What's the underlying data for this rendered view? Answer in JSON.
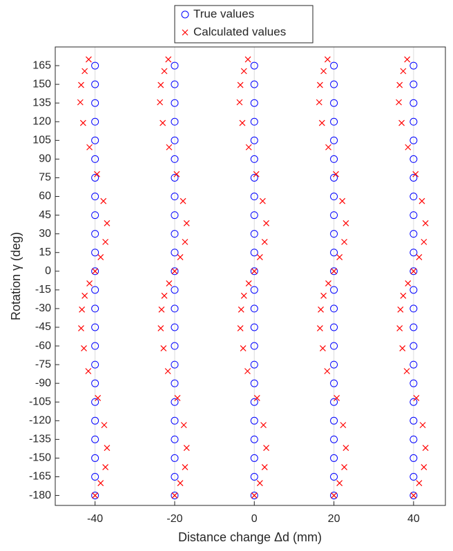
{
  "chart_data": {
    "type": "scatter",
    "xlabel": "Distance change Δd (mm)",
    "ylabel": "Rotation γ (deg)",
    "xlim": [
      -50,
      48
    ],
    "ylim": [
      -188,
      180
    ],
    "xticks": [
      -40,
      -20,
      0,
      20,
      40
    ],
    "yticks": [
      165,
      150,
      135,
      120,
      105,
      90,
      75,
      60,
      45,
      30,
      15,
      0,
      -15,
      -30,
      -45,
      -60,
      -75,
      -90,
      -105,
      -120,
      -135,
      -150,
      -165,
      -180
    ],
    "xgrid": true,
    "legend": "top",
    "series": [
      {
        "name": "True values",
        "color": "#0000ff",
        "marker": "circle",
        "x": [
          -40,
          -40,
          -40,
          -40,
          -40,
          -40,
          -40,
          -40,
          -40,
          -40,
          -40,
          -40,
          -40,
          -40,
          -40,
          -40,
          -40,
          -40,
          -40,
          -40,
          -40,
          -40,
          -40,
          -40,
          -20,
          -20,
          -20,
          -20,
          -20,
          -20,
          -20,
          -20,
          -20,
          -20,
          -20,
          -20,
          -20,
          -20,
          -20,
          -20,
          -20,
          -20,
          -20,
          -20,
          -20,
          -20,
          -20,
          -20,
          0,
          0,
          0,
          0,
          0,
          0,
          0,
          0,
          0,
          0,
          0,
          0,
          0,
          0,
          0,
          0,
          0,
          0,
          0,
          0,
          0,
          0,
          0,
          0,
          20,
          20,
          20,
          20,
          20,
          20,
          20,
          20,
          20,
          20,
          20,
          20,
          20,
          20,
          20,
          20,
          20,
          20,
          20,
          20,
          20,
          20,
          20,
          20,
          40,
          40,
          40,
          40,
          40,
          40,
          40,
          40,
          40,
          40,
          40,
          40,
          40,
          40,
          40,
          40,
          40,
          40,
          40,
          40,
          40,
          40,
          40,
          40
        ],
        "y": [
          165,
          150,
          135,
          120,
          105,
          90,
          75,
          60,
          45,
          30,
          15,
          0,
          -15,
          -30,
          -45,
          -60,
          -75,
          -90,
          -105,
          -120,
          -135,
          -150,
          -165,
          -180,
          165,
          150,
          135,
          120,
          105,
          90,
          75,
          60,
          45,
          30,
          15,
          0,
          -15,
          -30,
          -45,
          -60,
          -75,
          -90,
          -105,
          -120,
          -135,
          -150,
          -165,
          -180,
          165,
          150,
          135,
          120,
          105,
          90,
          75,
          60,
          45,
          30,
          15,
          0,
          -15,
          -30,
          -45,
          -60,
          -75,
          -90,
          -105,
          -120,
          -135,
          -150,
          -165,
          -180,
          165,
          150,
          135,
          120,
          105,
          90,
          75,
          60,
          45,
          30,
          15,
          0,
          -15,
          -30,
          -45,
          -60,
          -75,
          -90,
          -105,
          -120,
          -135,
          -150,
          -165,
          -180,
          165,
          150,
          135,
          120,
          105,
          90,
          75,
          60,
          45,
          30,
          15,
          0,
          -15,
          -30,
          -45,
          -60,
          -75,
          -90,
          -105,
          -120,
          -135,
          -150,
          -165,
          -180
        ]
      },
      {
        "name": "Calculated values",
        "color": "#ff0000",
        "marker": "cross",
        "x": [
          -41.6,
          -42.6,
          -43.5,
          -43.7,
          -43,
          -41.4,
          -39.5,
          -37.9,
          -37,
          -37.4,
          -38.6,
          -40,
          -41.4,
          -42.6,
          -43.3,
          -43.5,
          -42.8,
          -41.7,
          -39.3,
          -37.7,
          -37,
          -37.4,
          -38.6,
          -40,
          -21.6,
          -22.6,
          -23.5,
          -23.7,
          -23,
          -21.4,
          -19.5,
          -17.9,
          -17,
          -17.4,
          -18.6,
          -20,
          -21.4,
          -22.6,
          -23.3,
          -23.5,
          -22.8,
          -21.7,
          -19.3,
          -17.7,
          -17,
          -17.4,
          -18.6,
          -20,
          -1.6,
          -2.6,
          -3.5,
          -3.7,
          -3,
          -1.4,
          0.5,
          2.1,
          3,
          2.6,
          1.4,
          0,
          -1.4,
          -2.6,
          -3.3,
          -3.5,
          -2.8,
          -1.7,
          0.7,
          2.3,
          3,
          2.6,
          1.4,
          0,
          18.4,
          17.4,
          16.5,
          16.3,
          17,
          18.6,
          20.5,
          22.1,
          23,
          22.6,
          21.4,
          20,
          18.6,
          17.4,
          16.7,
          16.5,
          17.2,
          18.3,
          20.7,
          22.3,
          23,
          22.6,
          21.4,
          20,
          38.4,
          37.4,
          36.5,
          36.3,
          37,
          38.6,
          40.5,
          42.1,
          43,
          42.6,
          41.4,
          40,
          38.6,
          37.4,
          36.7,
          36.5,
          37.2,
          38.3,
          40.7,
          42.3,
          43,
          42.6,
          41.4,
          40
        ],
        "y": [
          170,
          160.6,
          149.5,
          135.6,
          119,
          99.5,
          77.9,
          56.3,
          38.5,
          23.5,
          11.3,
          0,
          -9.8,
          -19.7,
          -30.8,
          -45.8,
          -61.9,
          -80.2,
          -101.8,
          -123.5,
          -141.8,
          -157.3,
          -170.1,
          -180,
          170,
          160.6,
          149.5,
          135.6,
          119,
          99.5,
          77.9,
          56.3,
          38.5,
          23.5,
          11.3,
          0,
          -9.8,
          -19.7,
          -30.8,
          -45.8,
          -61.9,
          -80.2,
          -101.8,
          -123.5,
          -141.8,
          -157.3,
          -170.1,
          -180,
          170,
          160.6,
          149.5,
          135.6,
          119,
          99.5,
          77.9,
          56.3,
          38.5,
          23.5,
          11.3,
          0,
          -9.8,
          -19.7,
          -30.8,
          -45.8,
          -61.9,
          -80.2,
          -101.8,
          -123.5,
          -141.8,
          -157.3,
          -170.1,
          -180,
          170,
          160.6,
          149.5,
          135.6,
          119,
          99.5,
          77.9,
          56.3,
          38.5,
          23.5,
          11.3,
          0,
          -9.8,
          -19.7,
          -30.8,
          -45.8,
          -61.9,
          -80.2,
          -101.8,
          -123.5,
          -141.8,
          -157.3,
          -170.1,
          -180,
          170,
          160.6,
          149.5,
          135.6,
          119,
          99.5,
          77.9,
          56.3,
          38.5,
          23.5,
          11.3,
          0,
          -9.8,
          -19.7,
          -30.8,
          -45.8,
          -61.9,
          -80.2,
          -101.8,
          -123.5,
          -141.8,
          -157.3,
          -170.1,
          -180
        ]
      }
    ]
  }
}
